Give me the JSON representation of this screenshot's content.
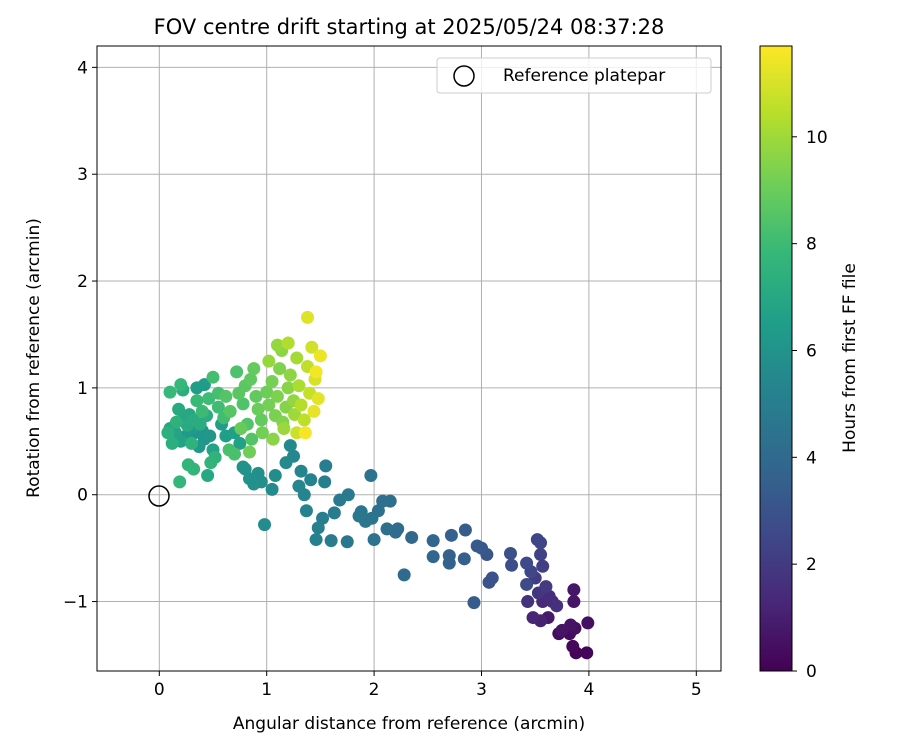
{
  "chart_data": {
    "type": "scatter",
    "title": "FOV centre drift starting at 2025/05/24 08:37:28",
    "xlabel": "Angular distance from reference (arcmin)",
    "ylabel": "Rotation from reference (arcmin)",
    "xlim": [
      -0.58,
      5.23
    ],
    "ylim": [
      -1.65,
      4.2
    ],
    "xticks": [
      0,
      1,
      2,
      3,
      4,
      5
    ],
    "xtick_labels": [
      "0",
      "1",
      "2",
      "3",
      "4",
      "5"
    ],
    "yticks": [
      -1,
      0,
      1,
      2,
      3,
      4
    ],
    "ytick_labels": [
      "−1",
      "0",
      "1",
      "2",
      "3",
      "4"
    ],
    "grid": true,
    "legend": {
      "placement": "top-right",
      "entries": [
        "Reference platepar"
      ]
    },
    "reference_point": {
      "x": 0,
      "y": 0,
      "label": "Reference platepar"
    },
    "colorbar": {
      "label": "Hours from first FF file",
      "min": 0,
      "max": 11.7,
      "ticks": [
        0,
        2,
        4,
        6,
        8,
        10
      ],
      "tick_labels": [
        "0",
        "2",
        "4",
        "6",
        "8",
        "10"
      ],
      "colormap": "viridis",
      "colormap_stops": [
        "#440154",
        "#482878",
        "#3e4a89",
        "#31688e",
        "#26828e",
        "#1f9e89",
        "#35b779",
        "#6ece58",
        "#b5de2b",
        "#fde725"
      ]
    },
    "points": [
      {
        "x": 3.88,
        "y": -1.48,
        "t": 0.1
      },
      {
        "x": 3.98,
        "y": -1.48,
        "t": 0.15
      },
      {
        "x": 3.85,
        "y": -1.42,
        "t": 0.2
      },
      {
        "x": 3.82,
        "y": -1.3,
        "t": 0.3
      },
      {
        "x": 3.72,
        "y": -1.3,
        "t": 0.4
      },
      {
        "x": 3.87,
        "y": -1.25,
        "t": 0.45
      },
      {
        "x": 3.99,
        "y": -1.2,
        "t": 0.5
      },
      {
        "x": 3.83,
        "y": -1.22,
        "t": 0.55
      },
      {
        "x": 3.75,
        "y": -1.27,
        "t": 0.6
      },
      {
        "x": 3.86,
        "y": -1.0,
        "t": 0.65
      },
      {
        "x": 3.86,
        "y": -0.89,
        "t": 0.7
      },
      {
        "x": 3.62,
        "y": -1.15,
        "t": 0.8
      },
      {
        "x": 3.55,
        "y": -1.18,
        "t": 1.1
      },
      {
        "x": 3.48,
        "y": -1.15,
        "t": 1.2
      },
      {
        "x": 3.57,
        "y": -1.0,
        "t": 1.3
      },
      {
        "x": 3.66,
        "y": -1.0,
        "t": 1.4
      },
      {
        "x": 3.63,
        "y": -0.95,
        "t": 1.5
      },
      {
        "x": 3.7,
        "y": -1.04,
        "t": 1.6
      },
      {
        "x": 3.43,
        "y": -1.0,
        "t": 1.7
      },
      {
        "x": 3.53,
        "y": -0.92,
        "t": 1.8
      },
      {
        "x": 3.6,
        "y": -0.86,
        "t": 2.0
      },
      {
        "x": 3.5,
        "y": -0.78,
        "t": 2.1
      },
      {
        "x": 3.57,
        "y": -0.67,
        "t": 2.2
      },
      {
        "x": 3.55,
        "y": -0.56,
        "t": 2.3
      },
      {
        "x": 3.55,
        "y": -0.45,
        "t": 2.4
      },
      {
        "x": 3.52,
        "y": -0.42,
        "t": 2.45
      },
      {
        "x": 3.46,
        "y": -0.72,
        "t": 2.5
      },
      {
        "x": 3.42,
        "y": -0.64,
        "t": 2.6
      },
      {
        "x": 3.42,
        "y": -0.84,
        "t": 2.7
      },
      {
        "x": 3.28,
        "y": -0.66,
        "t": 2.8
      },
      {
        "x": 3.27,
        "y": -0.55,
        "t": 2.9
      },
      {
        "x": 3.1,
        "y": -0.78,
        "t": 3.0
      },
      {
        "x": 3.07,
        "y": -0.82,
        "t": 3.05
      },
      {
        "x": 3.05,
        "y": -0.56,
        "t": 3.1
      },
      {
        "x": 3.0,
        "y": -0.5,
        "t": 3.2
      },
      {
        "x": 2.96,
        "y": -0.48,
        "t": 3.3
      },
      {
        "x": 2.93,
        "y": -1.01,
        "t": 3.35
      },
      {
        "x": 2.85,
        "y": -0.33,
        "t": 3.4
      },
      {
        "x": 2.84,
        "y": -0.6,
        "t": 3.5
      },
      {
        "x": 2.72,
        "y": -0.38,
        "t": 3.6
      },
      {
        "x": 2.7,
        "y": -0.57,
        "t": 3.65
      },
      {
        "x": 2.7,
        "y": -0.64,
        "t": 3.7
      },
      {
        "x": 2.55,
        "y": -0.43,
        "t": 3.8
      },
      {
        "x": 2.55,
        "y": -0.58,
        "t": 3.85
      },
      {
        "x": 2.35,
        "y": -0.4,
        "t": 3.9
      },
      {
        "x": 2.28,
        "y": -0.75,
        "t": 4.0
      },
      {
        "x": 2.22,
        "y": -0.32,
        "t": 4.1
      },
      {
        "x": 2.2,
        "y": -0.35,
        "t": 4.15
      },
      {
        "x": 2.15,
        "y": -0.06,
        "t": 4.2
      },
      {
        "x": 2.12,
        "y": -0.32,
        "t": 4.25
      },
      {
        "x": 2.08,
        "y": -0.06,
        "t": 4.3
      },
      {
        "x": 2.04,
        "y": -0.15,
        "t": 4.35
      },
      {
        "x": 2.0,
        "y": -0.42,
        "t": 4.4
      },
      {
        "x": 1.98,
        "y": -0.22,
        "t": 4.45
      },
      {
        "x": 1.97,
        "y": 0.18,
        "t": 4.5
      },
      {
        "x": 1.92,
        "y": -0.25,
        "t": 4.55
      },
      {
        "x": 1.88,
        "y": -0.16,
        "t": 4.6
      },
      {
        "x": 1.86,
        "y": -0.2,
        "t": 4.65
      },
      {
        "x": 1.75,
        "y": -0.44,
        "t": 4.7
      },
      {
        "x": 1.76,
        "y": 0.0,
        "t": 4.75
      },
      {
        "x": 1.68,
        "y": -0.05,
        "t": 4.8
      },
      {
        "x": 1.63,
        "y": -0.17,
        "t": 4.85
      },
      {
        "x": 1.6,
        "y": -0.43,
        "t": 4.9
      },
      {
        "x": 1.52,
        "y": -0.22,
        "t": 4.95
      },
      {
        "x": 1.55,
        "y": 0.27,
        "t": 5.0
      },
      {
        "x": 1.54,
        "y": 0.12,
        "t": 5.05
      },
      {
        "x": 1.48,
        "y": -0.31,
        "t": 5.1
      },
      {
        "x": 1.46,
        "y": -0.42,
        "t": 5.15
      },
      {
        "x": 1.41,
        "y": 0.14,
        "t": 5.2
      },
      {
        "x": 1.37,
        "y": -0.15,
        "t": 5.25
      },
      {
        "x": 1.35,
        "y": 0.0,
        "t": 5.3
      },
      {
        "x": 1.32,
        "y": 0.22,
        "t": 5.35
      },
      {
        "x": 1.3,
        "y": 0.08,
        "t": 5.4
      },
      {
        "x": 1.25,
        "y": 0.36,
        "t": 5.45
      },
      {
        "x": 1.22,
        "y": 0.46,
        "t": 5.5
      },
      {
        "x": 1.18,
        "y": 0.3,
        "t": 5.55
      },
      {
        "x": 1.05,
        "y": 0.05,
        "t": 5.6
      },
      {
        "x": 0.98,
        "y": -0.28,
        "t": 5.65
      },
      {
        "x": 1.08,
        "y": 0.18,
        "t": 5.7
      },
      {
        "x": 0.95,
        "y": 0.12,
        "t": 5.75
      },
      {
        "x": 0.92,
        "y": 0.2,
        "t": 5.8
      },
      {
        "x": 0.88,
        "y": 0.1,
        "t": 5.85
      },
      {
        "x": 0.84,
        "y": 0.15,
        "t": 5.9
      },
      {
        "x": 0.8,
        "y": 0.24,
        "t": 5.95
      },
      {
        "x": 0.78,
        "y": 0.26,
        "t": 6.0
      },
      {
        "x": 0.4,
        "y": 0.6,
        "t": 6.05
      },
      {
        "x": 0.33,
        "y": 0.58,
        "t": 6.1
      },
      {
        "x": 0.42,
        "y": 0.52,
        "t": 6.15
      },
      {
        "x": 0.47,
        "y": 0.55,
        "t": 6.2
      },
      {
        "x": 0.37,
        "y": 0.45,
        "t": 6.25
      },
      {
        "x": 0.3,
        "y": 0.62,
        "t": 6.3
      },
      {
        "x": 0.25,
        "y": 0.55,
        "t": 6.35
      },
      {
        "x": 0.35,
        "y": 1.0,
        "t": 6.4
      },
      {
        "x": 0.42,
        "y": 1.03,
        "t": 6.45
      },
      {
        "x": 0.58,
        "y": 0.66,
        "t": 6.5
      },
      {
        "x": 0.62,
        "y": 0.55,
        "t": 6.55
      },
      {
        "x": 0.7,
        "y": 0.58,
        "t": 6.6
      },
      {
        "x": 0.75,
        "y": 0.48,
        "t": 6.65
      },
      {
        "x": 0.5,
        "y": 0.42,
        "t": 6.7
      },
      {
        "x": 0.2,
        "y": 0.5,
        "t": 6.75
      },
      {
        "x": 0.15,
        "y": 0.58,
        "t": 6.8
      },
      {
        "x": 0.1,
        "y": 0.62,
        "t": 6.85
      },
      {
        "x": 0.22,
        "y": 0.7,
        "t": 6.9
      },
      {
        "x": 0.28,
        "y": 0.75,
        "t": 6.95
      },
      {
        "x": 0.45,
        "y": 0.18,
        "t": 7.0
      },
      {
        "x": 0.18,
        "y": 0.8,
        "t": 7.05
      },
      {
        "x": 0.26,
        "y": 0.65,
        "t": 7.1
      },
      {
        "x": 0.32,
        "y": 0.7,
        "t": 7.15
      },
      {
        "x": 0.38,
        "y": 0.66,
        "t": 7.2
      },
      {
        "x": 0.44,
        "y": 0.74,
        "t": 7.25
      },
      {
        "x": 0.22,
        "y": 0.98,
        "t": 7.3
      },
      {
        "x": 0.12,
        "y": 0.48,
        "t": 7.35
      },
      {
        "x": 0.08,
        "y": 0.58,
        "t": 7.4
      },
      {
        "x": 0.16,
        "y": 0.68,
        "t": 7.45
      },
      {
        "x": 0.3,
        "y": 0.48,
        "t": 7.5
      },
      {
        "x": 0.52,
        "y": 0.35,
        "t": 7.55
      },
      {
        "x": 0.48,
        "y": 0.3,
        "t": 7.6
      },
      {
        "x": 0.27,
        "y": 0.28,
        "t": 7.65
      },
      {
        "x": 0.32,
        "y": 0.24,
        "t": 7.7
      },
      {
        "x": 0.19,
        "y": 0.12,
        "t": 7.75
      },
      {
        "x": 0.2,
        "y": 1.03,
        "t": 7.8
      },
      {
        "x": 0.1,
        "y": 0.96,
        "t": 7.85
      },
      {
        "x": 0.35,
        "y": 0.88,
        "t": 7.9
      },
      {
        "x": 0.4,
        "y": 0.78,
        "t": 7.95
      },
      {
        "x": 0.46,
        "y": 0.9,
        "t": 8.0
      },
      {
        "x": 0.55,
        "y": 0.82,
        "t": 8.05
      },
      {
        "x": 0.6,
        "y": 0.72,
        "t": 8.1
      },
      {
        "x": 0.5,
        "y": 1.1,
        "t": 8.15
      },
      {
        "x": 0.55,
        "y": 0.95,
        "t": 8.2
      },
      {
        "x": 0.65,
        "y": 0.42,
        "t": 8.25
      },
      {
        "x": 0.7,
        "y": 0.38,
        "t": 8.3
      },
      {
        "x": 0.72,
        "y": 1.15,
        "t": 8.35
      },
      {
        "x": 0.78,
        "y": 0.85,
        "t": 8.4
      },
      {
        "x": 0.82,
        "y": 0.66,
        "t": 8.45
      },
      {
        "x": 0.86,
        "y": 0.52,
        "t": 8.5
      },
      {
        "x": 0.62,
        "y": 0.92,
        "t": 8.55
      },
      {
        "x": 0.66,
        "y": 0.78,
        "t": 8.6
      },
      {
        "x": 0.74,
        "y": 0.95,
        "t": 8.65
      },
      {
        "x": 0.8,
        "y": 1.02,
        "t": 8.7
      },
      {
        "x": 0.85,
        "y": 1.08,
        "t": 8.75
      },
      {
        "x": 0.9,
        "y": 0.92,
        "t": 8.8
      },
      {
        "x": 0.95,
        "y": 0.7,
        "t": 8.85
      },
      {
        "x": 0.88,
        "y": 1.18,
        "t": 8.9
      },
      {
        "x": 0.76,
        "y": 0.62,
        "t": 8.95
      },
      {
        "x": 0.92,
        "y": 0.8,
        "t": 9.0
      },
      {
        "x": 1.0,
        "y": 0.96,
        "t": 9.05
      },
      {
        "x": 0.84,
        "y": 0.4,
        "t": 9.1
      },
      {
        "x": 0.96,
        "y": 0.58,
        "t": 9.15
      },
      {
        "x": 1.02,
        "y": 0.84,
        "t": 9.2
      },
      {
        "x": 1.05,
        "y": 1.06,
        "t": 9.25
      },
      {
        "x": 1.08,
        "y": 0.74,
        "t": 9.3
      },
      {
        "x": 1.1,
        "y": 0.92,
        "t": 9.35
      },
      {
        "x": 1.12,
        "y": 1.18,
        "t": 9.4
      },
      {
        "x": 1.15,
        "y": 0.68,
        "t": 9.45
      },
      {
        "x": 1.18,
        "y": 0.82,
        "t": 9.5
      },
      {
        "x": 1.2,
        "y": 1.0,
        "t": 9.55
      },
      {
        "x": 1.06,
        "y": 0.52,
        "t": 9.6
      },
      {
        "x": 1.14,
        "y": 1.35,
        "t": 9.65
      },
      {
        "x": 1.22,
        "y": 1.12,
        "t": 9.7
      },
      {
        "x": 1.25,
        "y": 0.88,
        "t": 9.75
      },
      {
        "x": 1.1,
        "y": 1.4,
        "t": 9.8
      },
      {
        "x": 1.02,
        "y": 1.25,
        "t": 9.85
      },
      {
        "x": 1.16,
        "y": 0.62,
        "t": 9.9
      },
      {
        "x": 1.26,
        "y": 0.75,
        "t": 10.0
      },
      {
        "x": 1.28,
        "y": 1.28,
        "t": 10.1
      },
      {
        "x": 1.3,
        "y": 1.02,
        "t": 10.2
      },
      {
        "x": 1.2,
        "y": 1.42,
        "t": 10.3
      },
      {
        "x": 1.32,
        "y": 0.84,
        "t": 10.4
      },
      {
        "x": 1.35,
        "y": 0.7,
        "t": 10.5
      },
      {
        "x": 1.38,
        "y": 1.2,
        "t": 10.6
      },
      {
        "x": 1.4,
        "y": 0.95,
        "t": 10.7
      },
      {
        "x": 1.28,
        "y": 0.58,
        "t": 10.8
      },
      {
        "x": 1.42,
        "y": 1.38,
        "t": 10.9
      },
      {
        "x": 1.45,
        "y": 1.08,
        "t": 11.0
      },
      {
        "x": 1.38,
        "y": 1.66,
        "t": 11.1
      },
      {
        "x": 1.48,
        "y": 0.9,
        "t": 11.2
      },
      {
        "x": 1.44,
        "y": 0.78,
        "t": 11.3
      },
      {
        "x": 1.5,
        "y": 1.3,
        "t": 11.4
      },
      {
        "x": 1.46,
        "y": 1.15,
        "t": 11.5
      },
      {
        "x": 1.36,
        "y": 0.58,
        "t": 11.6
      }
    ]
  }
}
